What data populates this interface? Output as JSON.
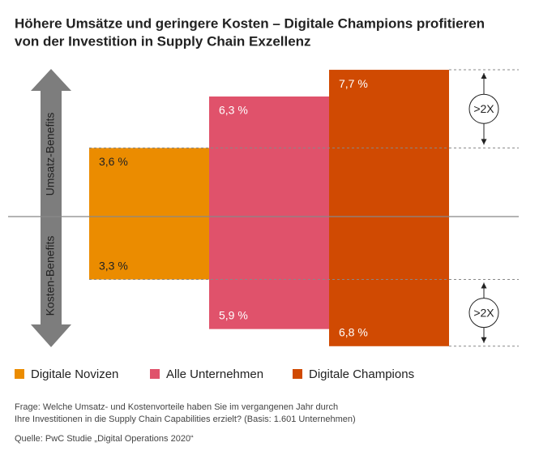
{
  "chart_data": {
    "type": "diverging_bar",
    "title": [
      "Höhere Umsätze und geringere Kosten – Digitale Champions profitieren",
      "von der Investition in Supply Chain Exzellenz"
    ],
    "categories": [
      "Umsatz-Benefits",
      "Kosten-Benefits"
    ],
    "series": [
      {
        "name": "Digitale Novizen",
        "color": "#eb8c00",
        "values": [
          3.6,
          3.3
        ],
        "value_labels": [
          "3,6 %",
          "3,3 %"
        ]
      },
      {
        "name": "Alle Unternehmen",
        "color": "#e0526b",
        "values": [
          6.3,
          5.9
        ],
        "value_labels": [
          "6,3 %",
          "5,9 %"
        ]
      },
      {
        "name": "Digitale Champions",
        "color": "#d04a02",
        "values": [
          7.7,
          6.8
        ],
        "value_labels": [
          "7,7 %",
          "6,8 %"
        ]
      }
    ],
    "annotations": [
      ">2X",
      ">2X"
    ],
    "notes": [
      "Frage: Welche Umsatz- und Kostenvorteile haben Sie im vergangenen Jahr durch",
      "Ihre Investitionen in die Supply Chain Capabilities erzielt? (Basis: 1.601 Unternehmen)"
    ],
    "source": "Quelle: PwC Studie „Digital Operations 2020“"
  }
}
